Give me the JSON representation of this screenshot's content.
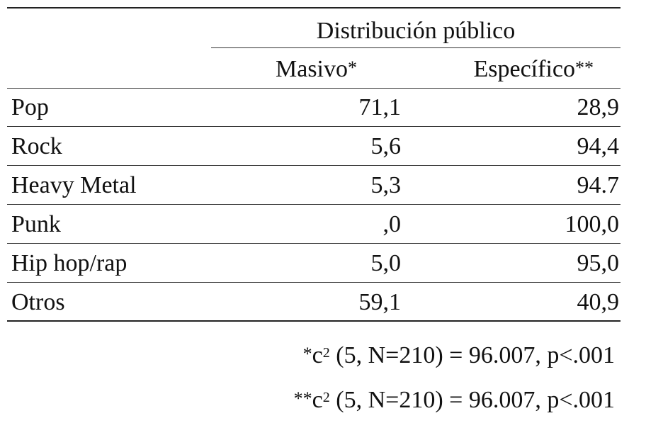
{
  "table": {
    "group_header": "Distribución público",
    "columns": [
      {
        "label": "Masivo",
        "marker": "*"
      },
      {
        "label": "Específico",
        "marker": "**"
      }
    ],
    "rows": [
      {
        "genre": "Pop",
        "masivo": "71,1",
        "especifico": "28,9"
      },
      {
        "genre": "Rock",
        "masivo": "5,6",
        "especifico": "94,4"
      },
      {
        "genre": "Heavy Metal",
        "masivo": "5,3",
        "especifico": "94.7"
      },
      {
        "genre": "Punk",
        "masivo": ",0",
        "especifico": "100,0"
      },
      {
        "genre": "Hip hop/rap",
        "masivo": "5,0",
        "especifico": "95,0"
      },
      {
        "genre": "Otros",
        "masivo": "59,1",
        "especifico": "40,9"
      }
    ]
  },
  "footnotes": [
    {
      "marker": "*",
      "symbol": "c",
      "superscript": "2",
      "text": " (5, N=210) = 96.007, p<.001"
    },
    {
      "marker": "**",
      "symbol": "c",
      "superscript": "2",
      "text": " (5, N=210) = 96.007, p<.001"
    }
  ]
}
